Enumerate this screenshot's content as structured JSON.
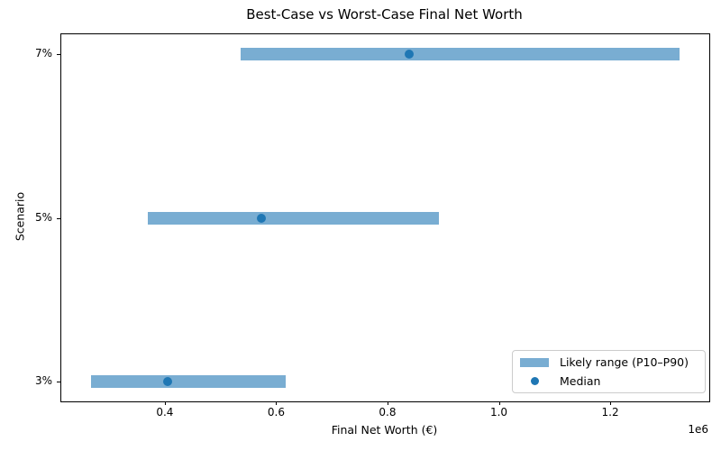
{
  "chart_data": {
    "type": "bar",
    "subtype": "horizontal_range_bar_with_median_points",
    "title": "Best-Case vs Worst-Case Final Net Worth",
    "xlabel": "Final Net Worth (€)",
    "ylabel": "Scenario",
    "x_offset_text": "1e6",
    "categories": [
      "3%",
      "5%",
      "7%"
    ],
    "rows": [
      {
        "category": "3%",
        "p10": 267000,
        "median": 405000,
        "p90": 617000
      },
      {
        "category": "5%",
        "p10": 369000,
        "median": 574000,
        "p90": 892000
      },
      {
        "category": "7%",
        "p10": 536000,
        "median": 839000,
        "p90": 1325000
      }
    ],
    "series": [
      {
        "name": "Likely range (P10–P90)",
        "type": "range_bar",
        "low": [
          267000,
          369000,
          536000
        ],
        "high": [
          617000,
          892000,
          1325000
        ]
      },
      {
        "name": "Median",
        "type": "point",
        "values": [
          405000,
          574000,
          839000
        ]
      }
    ],
    "xlim": [
      214000,
      1378000
    ],
    "ylim": [
      -0.12,
      2.12
    ],
    "xticks": [
      400000,
      600000,
      800000,
      1000000,
      1200000
    ],
    "xtick_labels": [
      "0.4",
      "0.6",
      "0.8",
      "1.0",
      "1.2"
    ],
    "grid": false,
    "legend_position": "lower right",
    "colors": {
      "range_bar": "#79ADD2",
      "median_dot": "#1F77B4",
      "spine": "#000000",
      "text": "#000000",
      "legend_border": "#CCCCCC"
    }
  },
  "legend": {
    "items": [
      {
        "label": "Likely range (P10–P90)",
        "swatch": "bar"
      },
      {
        "label": "Median",
        "swatch": "dot"
      }
    ]
  }
}
